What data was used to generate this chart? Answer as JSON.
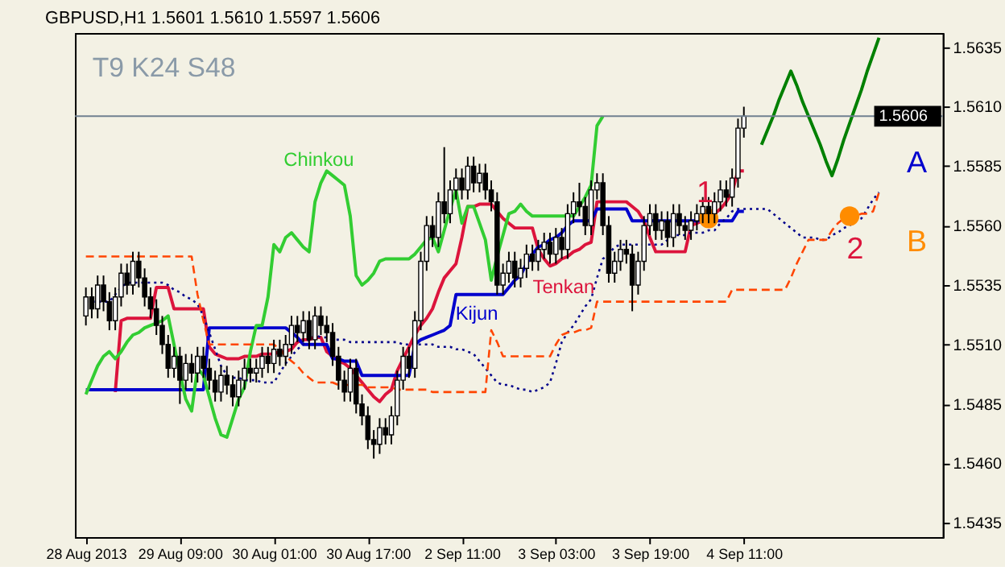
{
  "chart_data": {
    "type": "candlestick",
    "title": "GBPUSD,H1  1.5601 1.5610 1.5597 1.5606",
    "categories": [
      "28 Aug 2013",
      null,
      null,
      null,
      null,
      null,
      null,
      null,
      null,
      null,
      null,
      null,
      null,
      null,
      null,
      null,
      "29 Aug 09:00",
      null,
      null,
      null,
      null,
      null,
      null,
      null,
      null,
      null,
      null,
      null,
      null,
      null,
      null,
      null,
      "30 Aug 01:00",
      null,
      null,
      null,
      null,
      null,
      null,
      null,
      null,
      null,
      null,
      null,
      null,
      null,
      null,
      null,
      "30 Aug 17:00",
      null,
      null,
      null,
      null,
      null,
      null,
      null,
      null,
      null,
      null,
      null,
      null,
      null,
      null,
      null,
      "2 Sep 11:00",
      null,
      null,
      null,
      null,
      null,
      null,
      null,
      null,
      null,
      null,
      null,
      null,
      null,
      null,
      null,
      "3 Sep 03:00",
      null,
      null,
      null,
      null,
      null,
      null,
      null,
      null,
      null,
      null,
      null,
      null,
      null,
      null,
      null,
      "3 Sep 19:00",
      null,
      null,
      null,
      null,
      null,
      null,
      null,
      null,
      null,
      null,
      null,
      null,
      null,
      null,
      null,
      "4 Sep 11:00",
      null,
      null,
      null,
      null,
      null,
      null,
      null,
      null,
      null,
      null,
      null,
      null,
      null,
      null,
      null,
      null,
      null,
      null,
      null,
      null,
      null,
      null,
      null,
      null,
      null,
      null,
      null,
      null,
      null,
      null,
      null,
      null
    ],
    "ohlc": [
      [
        1.5522,
        1.5534,
        1.5518,
        1.553
      ],
      [
        1.553,
        1.5534,
        1.5521,
        1.5525
      ],
      [
        1.5525,
        1.5539,
        1.5521,
        1.5535
      ],
      [
        1.5535,
        1.5539,
        1.5524,
        1.5528
      ],
      [
        1.5528,
        1.5532,
        1.5516,
        1.552
      ],
      [
        1.552,
        1.5534,
        1.5516,
        1.553
      ],
      [
        1.553,
        1.5544,
        1.5526,
        1.554
      ],
      [
        1.554,
        1.5544,
        1.5531,
        1.5535
      ],
      [
        1.5535,
        1.5549,
        1.5531,
        1.5545
      ],
      [
        1.5545,
        1.5549,
        1.5534,
        1.5538
      ],
      [
        1.5538,
        1.5542,
        1.5526,
        1.553
      ],
      [
        1.553,
        1.5534,
        1.5521,
        1.5525
      ],
      [
        1.5525,
        1.5529,
        1.5514,
        1.5518
      ],
      [
        1.5518,
        1.5522,
        1.5506,
        1.551
      ],
      [
        1.551,
        1.5514,
        1.5496,
        1.55
      ],
      [
        1.55,
        1.5509,
        1.5496,
        1.5505
      ],
      [
        1.5505,
        1.5509,
        1.5485,
        1.5495
      ],
      [
        1.5495,
        1.5506,
        1.5491,
        1.5502
      ],
      [
        1.5502,
        1.5506,
        1.5494,
        1.5498
      ],
      [
        1.5498,
        1.5509,
        1.5494,
        1.5505
      ],
      [
        1.5505,
        1.5509,
        1.5496,
        1.55
      ],
      [
        1.55,
        1.5504,
        1.5491,
        1.5495
      ],
      [
        1.5495,
        1.5499,
        1.5486,
        1.549
      ],
      [
        1.549,
        1.5501,
        1.5486,
        1.5497
      ],
      [
        1.5497,
        1.5501,
        1.5489,
        1.5493
      ],
      [
        1.5493,
        1.5497,
        1.5484,
        1.5488
      ],
      [
        1.5488,
        1.5499,
        1.5484,
        1.5495
      ],
      [
        1.5495,
        1.5504,
        1.5491,
        1.55
      ],
      [
        1.55,
        1.5504,
        1.5494,
        1.5498
      ],
      [
        1.5498,
        1.5504,
        1.5494,
        1.55
      ],
      [
        1.55,
        1.5509,
        1.5496,
        1.5505
      ],
      [
        1.5505,
        1.5509,
        1.5498,
        1.5502
      ],
      [
        1.5502,
        1.5512,
        1.5498,
        1.5508
      ],
      [
        1.5508,
        1.5512,
        1.5501,
        1.5505
      ],
      [
        1.5505,
        1.5514,
        1.5501,
        1.551
      ],
      [
        1.551,
        1.5522,
        1.5506,
        1.5518
      ],
      [
        1.5518,
        1.5522,
        1.5511,
        1.5515
      ],
      [
        1.5515,
        1.5524,
        1.5511,
        1.552
      ],
      [
        1.552,
        1.5524,
        1.5508,
        1.5512
      ],
      [
        1.5512,
        1.5526,
        1.5508,
        1.5522
      ],
      [
        1.5522,
        1.5526,
        1.5514,
        1.5518
      ],
      [
        1.5518,
        1.5522,
        1.5511,
        1.5515
      ],
      [
        1.5515,
        1.5519,
        1.5501,
        1.5505
      ],
      [
        1.5505,
        1.5509,
        1.5491,
        1.5495
      ],
      [
        1.5495,
        1.5499,
        1.5486,
        1.549
      ],
      [
        1.549,
        1.5504,
        1.5486,
        1.55
      ],
      [
        1.55,
        1.5504,
        1.5481,
        1.5485
      ],
      [
        1.5485,
        1.5489,
        1.5476,
        1.548
      ],
      [
        1.548,
        1.5484,
        1.5466,
        1.547
      ],
      [
        1.547,
        1.5474,
        1.5462,
        1.5468
      ],
      [
        1.5468,
        1.5479,
        1.5464,
        1.5475
      ],
      [
        1.5475,
        1.5479,
        1.5468,
        1.5472
      ],
      [
        1.5472,
        1.5484,
        1.5468,
        1.548
      ],
      [
        1.548,
        1.5499,
        1.5476,
        1.5495
      ],
      [
        1.5495,
        1.5509,
        1.5491,
        1.5505
      ],
      [
        1.5505,
        1.5509,
        1.5496,
        1.55
      ],
      [
        1.55,
        1.5524,
        1.5496,
        1.552
      ],
      [
        1.552,
        1.5549,
        1.5516,
        1.5545
      ],
      [
        1.5545,
        1.5564,
        1.5541,
        1.556
      ],
      [
        1.556,
        1.5564,
        1.5551,
        1.5555
      ],
      [
        1.5555,
        1.5574,
        1.5551,
        1.557
      ],
      [
        1.557,
        1.5593,
        1.5561,
        1.5565
      ],
      [
        1.5565,
        1.5579,
        1.5561,
        1.5575
      ],
      [
        1.5575,
        1.5584,
        1.5571,
        1.558
      ],
      [
        1.558,
        1.5584,
        1.5571,
        1.5575
      ],
      [
        1.5575,
        1.5589,
        1.5571,
        1.5585
      ],
      [
        1.5585,
        1.5589,
        1.5574,
        1.5578
      ],
      [
        1.5578,
        1.5586,
        1.5574,
        1.5582
      ],
      [
        1.5582,
        1.5586,
        1.5571,
        1.5575
      ],
      [
        1.5575,
        1.5579,
        1.5566,
        1.557
      ],
      [
        1.557,
        1.5574,
        1.5531,
        1.5535
      ],
      [
        1.5535,
        1.5544,
        1.5531,
        1.554
      ],
      [
        1.554,
        1.5549,
        1.5536,
        1.5545
      ],
      [
        1.5545,
        1.5549,
        1.5534,
        1.5538
      ],
      [
        1.5538,
        1.5546,
        1.5534,
        1.5542
      ],
      [
        1.5542,
        1.5552,
        1.5538,
        1.5548
      ],
      [
        1.5548,
        1.5552,
        1.5541,
        1.5545
      ],
      [
        1.5545,
        1.5554,
        1.5541,
        1.555
      ],
      [
        1.555,
        1.5557,
        1.5546,
        1.5553
      ],
      [
        1.5553,
        1.5557,
        1.5544,
        1.5548
      ],
      [
        1.5548,
        1.5559,
        1.5544,
        1.5555
      ],
      [
        1.5555,
        1.5559,
        1.5546,
        1.555
      ],
      [
        1.555,
        1.5569,
        1.5546,
        1.5565
      ],
      [
        1.5565,
        1.5574,
        1.5561,
        1.557
      ],
      [
        1.557,
        1.5578,
        1.5564,
        1.5568
      ],
      [
        1.5568,
        1.5572,
        1.5556,
        1.556
      ],
      [
        1.556,
        1.5579,
        1.5556,
        1.5575
      ],
      [
        1.5575,
        1.5582,
        1.5571,
        1.5578
      ],
      [
        1.5578,
        1.5582,
        1.5556,
        1.556
      ],
      [
        1.556,
        1.5564,
        1.5536,
        1.554
      ],
      [
        1.554,
        1.5549,
        1.5536,
        1.5545
      ],
      [
        1.5545,
        1.5554,
        1.5541,
        1.555
      ],
      [
        1.555,
        1.5554,
        1.5544,
        1.5548
      ],
      [
        1.5548,
        1.5552,
        1.5524,
        1.5535
      ],
      [
        1.5535,
        1.5549,
        1.5531,
        1.5545
      ],
      [
        1.5545,
        1.5564,
        1.5541,
        1.556
      ],
      [
        1.556,
        1.5569,
        1.5556,
        1.5565
      ],
      [
        1.5565,
        1.5569,
        1.5554,
        1.5558
      ],
      [
        1.5558,
        1.5566,
        1.5554,
        1.5562
      ],
      [
        1.5562,
        1.5566,
        1.5551,
        1.5555
      ],
      [
        1.5555,
        1.5569,
        1.5551,
        1.5565
      ],
      [
        1.5565,
        1.5569,
        1.5556,
        1.556
      ],
      [
        1.556,
        1.5564,
        1.5554,
        1.5558
      ],
      [
        1.5558,
        1.5566,
        1.5554,
        1.5562
      ],
      [
        1.5562,
        1.5569,
        1.5558,
        1.5565
      ],
      [
        1.5565,
        1.5572,
        1.5561,
        1.5568
      ],
      [
        1.5568,
        1.5572,
        1.5561,
        1.5565
      ],
      [
        1.5565,
        1.5574,
        1.5561,
        1.557
      ],
      [
        1.557,
        1.5579,
        1.5566,
        1.5575
      ],
      [
        1.5575,
        1.5579,
        1.5568,
        1.5572
      ],
      [
        1.5572,
        1.5584,
        1.5568,
        1.558
      ],
      [
        1.558,
        1.5605,
        1.5576,
        1.5601
      ],
      [
        1.5601,
        1.561,
        1.5597,
        1.5606
      ],
      null,
      null,
      null,
      null,
      null,
      null,
      null,
      null,
      null,
      null,
      null,
      null,
      null,
      null,
      null,
      null,
      null,
      null,
      null,
      null,
      null,
      null,
      null,
      null,
      null,
      null,
      null,
      null,
      null,
      null,
      null,
      null
    ],
    "series": [
      {
        "type": "line",
        "color": "#dc143c",
        "values": [
          null,
          null,
          null,
          null,
          null,
          1.549,
          1.552,
          1.5521,
          1.5521,
          1.5521,
          1.5521,
          1.5521,
          1.5534,
          1.5534,
          1.5534,
          1.5525,
          1.5525,
          1.5525,
          1.5525,
          1.5525,
          1.5525,
          1.5509,
          1.5506,
          1.5505,
          1.5504,
          1.5504,
          1.5504,
          1.5505,
          1.5505,
          1.5505,
          1.5506,
          1.5506,
          1.5506,
          1.5507,
          1.5507,
          1.5508,
          1.5511,
          1.5512,
          1.5512,
          1.5513,
          1.5513,
          1.5507,
          1.5505,
          1.5503,
          1.5502,
          1.55,
          1.5497,
          1.5494,
          1.5491,
          1.5488,
          1.5486,
          1.5489,
          1.5491,
          1.5499,
          1.5504,
          1.5509,
          1.5514,
          1.5518,
          1.5521,
          1.5525,
          1.5532,
          1.5538,
          1.5541,
          1.5544,
          1.5555,
          1.5568,
          1.5568,
          1.5569,
          1.5569,
          1.5569,
          1.5566,
          1.5563,
          1.5561,
          1.5559,
          1.5559,
          1.5559,
          1.5559,
          1.555,
          1.5546,
          1.5543,
          1.5544,
          1.5546,
          1.5547,
          1.5549,
          1.555,
          1.5552,
          1.5553,
          1.557,
          1.557,
          1.557,
          1.557,
          1.557,
          1.557,
          1.5568,
          1.5566,
          1.5562,
          1.5555,
          1.5549,
          1.5549,
          1.5549,
          1.5549,
          1.5549,
          1.5549,
          1.556,
          1.5561,
          1.5562,
          1.5563,
          1.5565,
          1.5567,
          1.557,
          1.5574,
          1.5583,
          1.5583,
          null,
          null,
          null,
          null,
          null,
          null,
          null,
          null,
          null,
          null,
          null,
          null,
          null,
          null,
          null,
          null,
          null,
          null,
          null,
          null,
          null,
          null,
          null,
          null,
          null,
          null,
          null,
          null,
          null,
          null,
          null,
          null
        ]
      },
      {
        "type": "line",
        "color": "#0000cd",
        "values": [
          1.5491,
          1.5491,
          1.5491,
          1.5491,
          1.5491,
          1.5491,
          1.5491,
          1.5491,
          1.5491,
          1.5491,
          1.5491,
          1.5491,
          1.5491,
          1.5491,
          1.5491,
          1.5491,
          1.5491,
          1.5491,
          1.5491,
          1.5491,
          1.5491,
          1.5517,
          1.5517,
          1.5517,
          1.5517,
          1.5517,
          1.5517,
          1.5517,
          1.5517,
          1.5517,
          1.5517,
          1.5517,
          1.5517,
          1.5517,
          1.5517,
          1.5515,
          1.5513,
          1.551,
          1.551,
          1.551,
          1.551,
          1.551,
          1.5504,
          1.5504,
          1.5503,
          1.5503,
          1.5503,
          1.5497,
          1.5497,
          1.5497,
          1.5497,
          1.5497,
          1.5497,
          1.5497,
          1.5497,
          1.5497,
          1.551,
          1.5512,
          1.5513,
          1.5514,
          1.5515,
          1.5516,
          1.5518,
          1.5531,
          1.5531,
          1.5531,
          1.5531,
          1.5531,
          1.5531,
          1.5531,
          1.5531,
          1.5531,
          1.5534,
          1.5537,
          1.5539,
          1.5544,
          1.5548,
          1.5551,
          1.5552,
          1.5554,
          1.5555,
          1.5557,
          1.556,
          1.5562,
          1.5562,
          1.5562,
          1.5562,
          1.5567,
          1.5567,
          1.5567,
          1.5567,
          1.5567,
          1.5567,
          1.5562,
          1.5562,
          1.5562,
          1.5562,
          1.5562,
          1.5562,
          1.5562,
          1.5562,
          1.5562,
          1.5562,
          1.5562,
          1.5562,
          1.5562,
          1.5562,
          1.5562,
          1.5562,
          1.5562,
          1.5562,
          1.5566,
          1.5566,
          null,
          null,
          null,
          null,
          null,
          null,
          null,
          null,
          null,
          null,
          null,
          null,
          null,
          null,
          null,
          null,
          null,
          null,
          null,
          null,
          null,
          null,
          null,
          null,
          null,
          null,
          null,
          null,
          null,
          null,
          null,
          null
        ]
      },
      {
        "type": "line",
        "color": "#32cd32",
        "values": [
          1.5489,
          1.5495,
          1.5501,
          1.5505,
          1.5507,
          1.5504,
          1.5507,
          1.5511,
          1.5514,
          1.5515,
          1.5517,
          1.5518,
          1.5519,
          1.552,
          1.5522,
          1.551,
          1.5498,
          1.5487,
          1.5482,
          1.55,
          1.5497,
          1.5488,
          1.5479,
          1.5472,
          1.5471,
          1.5479,
          1.5487,
          1.5492,
          1.5507,
          1.5518,
          1.5518,
          1.553,
          1.5552,
          1.5549,
          1.5555,
          1.5557,
          1.5554,
          1.5551,
          1.5549,
          1.557,
          1.5578,
          1.5583,
          1.5581,
          1.5579,
          1.5577,
          1.5564,
          1.5539,
          1.5535,
          1.5537,
          1.554,
          1.5545,
          1.5546,
          1.5546,
          1.5546,
          1.5546,
          1.5546,
          1.5548,
          1.5551,
          1.5554,
          1.5555,
          1.5549,
          1.5558,
          1.5567,
          1.5575,
          1.5561,
          1.5568,
          1.5568,
          1.5561,
          1.5554,
          1.5537,
          1.5547,
          1.5556,
          1.5565,
          1.5566,
          1.5569,
          1.5566,
          1.5564,
          1.5564,
          1.5564,
          1.5564,
          1.5564,
          1.5564,
          1.5564,
          1.5564,
          1.5568,
          1.5572,
          1.5577,
          1.5602,
          1.5606,
          null,
          null,
          null,
          null,
          null,
          null,
          null,
          null,
          null,
          null,
          null,
          null,
          null,
          null,
          null,
          null,
          null,
          null,
          null,
          null,
          null,
          null,
          null,
          null,
          null,
          null,
          null,
          null,
          null,
          null,
          null,
          null,
          null,
          null,
          null,
          null,
          null,
          null,
          null,
          null,
          null,
          null,
          null,
          null,
          null,
          null,
          null,
          null,
          null,
          null,
          null,
          null,
          null,
          null,
          null,
          null
        ]
      },
      {
        "type": "line",
        "color": "#00008b",
        "line_style": "dotted",
        "values": [
          1.5528,
          1.5528,
          1.5528,
          1.5528,
          1.5528,
          1.5531,
          1.5534,
          1.5536,
          1.5536,
          1.5536,
          1.5536,
          1.5536,
          1.5536,
          1.5536,
          1.5535,
          1.5533,
          1.5532,
          1.553,
          1.5529,
          1.5527,
          1.5522,
          1.5515,
          1.5508,
          1.5501,
          1.5497,
          1.5496,
          1.5496,
          1.5495,
          1.5495,
          1.5495,
          1.5494,
          1.5494,
          1.5494,
          1.5498,
          1.5502,
          1.5505,
          1.5508,
          1.551,
          1.5512,
          1.5514,
          1.5513,
          1.5513,
          1.5512,
          1.5512,
          1.5512,
          1.5511,
          1.5511,
          1.5511,
          1.5511,
          1.5511,
          1.5511,
          1.5511,
          1.5511,
          1.5511,
          1.551,
          1.551,
          1.551,
          1.551,
          1.551,
          1.551,
          1.5509,
          1.5509,
          1.5509,
          1.5508,
          1.5508,
          1.5507,
          1.5506,
          1.5503,
          1.55,
          1.5497,
          1.5494,
          1.5493,
          1.5493,
          1.5492,
          1.5491,
          1.5491,
          1.549,
          1.5491,
          1.5492,
          1.5494,
          1.5502,
          1.5511,
          1.5515,
          1.5518,
          1.5522,
          1.5526,
          1.5529,
          1.5538,
          1.5546,
          1.5548,
          1.5551,
          1.5552,
          1.5552,
          1.5552,
          1.5552,
          1.5552,
          1.5552,
          1.5552,
          1.5552,
          1.5554,
          1.5556,
          1.5556,
          1.5556,
          1.5557,
          1.5557,
          1.5557,
          1.5558,
          1.5558,
          1.5561,
          1.5563,
          1.5566,
          1.5567,
          1.5567,
          1.5567,
          1.5567,
          1.5567,
          1.5567,
          1.5565,
          1.5563,
          1.5561,
          1.5559,
          1.5557,
          1.5555,
          1.5555,
          1.5555,
          1.5554,
          1.5554,
          1.5556,
          1.5557,
          1.5559,
          1.556,
          1.5562,
          1.5563,
          1.5567,
          1.5571,
          1.5574,
          null,
          null,
          null,
          null,
          null,
          null,
          null,
          null,
          null
        ]
      },
      {
        "type": "line",
        "color": "#ff4500",
        "line_style": "dashed",
        "values": [
          1.5547,
          1.5547,
          1.5547,
          1.5547,
          1.5547,
          1.5547,
          1.5547,
          1.5547,
          1.5547,
          1.5547,
          1.5547,
          1.5547,
          1.5547,
          1.5547,
          1.5547,
          1.5547,
          1.5547,
          1.5547,
          1.5547,
          1.5531,
          1.552,
          1.551,
          1.551,
          1.551,
          1.551,
          1.551,
          1.551,
          1.551,
          1.551,
          1.551,
          1.551,
          1.551,
          1.551,
          1.5508,
          1.5505,
          1.5503,
          1.5501,
          1.5498,
          1.5496,
          1.5494,
          1.5494,
          1.5494,
          1.5494,
          1.5493,
          1.5493,
          1.5493,
          1.5493,
          1.5493,
          1.5492,
          1.5492,
          1.5492,
          1.5492,
          1.5492,
          1.5491,
          1.5491,
          1.5491,
          1.5491,
          1.5491,
          1.5491,
          1.549,
          1.549,
          1.549,
          1.549,
          1.549,
          1.549,
          1.549,
          1.549,
          1.549,
          1.549,
          1.5516,
          1.5511,
          1.5505,
          1.5505,
          1.5505,
          1.5505,
          1.5505,
          1.5505,
          1.5505,
          1.5505,
          1.5505,
          1.551,
          1.5514,
          1.5515,
          1.5515,
          1.5516,
          1.5516,
          1.5517,
          1.5528,
          1.5528,
          1.5528,
          1.5528,
          1.5528,
          1.5528,
          1.5528,
          1.5528,
          1.5528,
          1.5528,
          1.5528,
          1.5528,
          1.5528,
          1.5528,
          1.5528,
          1.5528,
          1.5528,
          1.5528,
          1.5528,
          1.5528,
          1.5528,
          1.5528,
          1.5528,
          1.5533,
          1.5533,
          1.5533,
          1.5533,
          1.5533,
          1.5533,
          1.5533,
          1.5533,
          1.5533,
          1.5533,
          1.5538,
          1.5544,
          1.5549,
          1.5554,
          1.5554,
          1.5554,
          1.5554,
          1.5558,
          1.5561,
          1.5563,
          1.5564,
          1.5564,
          1.5565,
          1.5565,
          1.5566,
          1.5574,
          null,
          null,
          null,
          null,
          null,
          null,
          null,
          null,
          null
        ]
      },
      {
        "type": "line",
        "color": "#008000",
        "values": [
          null,
          null,
          null,
          null,
          null,
          null,
          null,
          null,
          null,
          null,
          null,
          null,
          null,
          null,
          null,
          null,
          null,
          null,
          null,
          null,
          null,
          null,
          null,
          null,
          null,
          null,
          null,
          null,
          null,
          null,
          null,
          null,
          null,
          null,
          null,
          null,
          null,
          null,
          null,
          null,
          null,
          null,
          null,
          null,
          null,
          null,
          null,
          null,
          null,
          null,
          null,
          null,
          null,
          null,
          null,
          null,
          null,
          null,
          null,
          null,
          null,
          null,
          null,
          null,
          null,
          null,
          null,
          null,
          null,
          null,
          null,
          null,
          null,
          null,
          null,
          null,
          null,
          null,
          null,
          null,
          null,
          null,
          null,
          null,
          null,
          null,
          null,
          null,
          null,
          null,
          null,
          null,
          null,
          null,
          null,
          null,
          null,
          null,
          null,
          null,
          null,
          null,
          null,
          null,
          null,
          null,
          null,
          null,
          null,
          null,
          null,
          null,
          null,
          null,
          null,
          1.5594,
          1.56,
          1.5606,
          1.5613,
          1.5619,
          1.5625,
          1.5619,
          1.5612,
          1.5606,
          1.56,
          1.5594,
          1.5587,
          1.5581,
          1.5588,
          1.5596,
          1.5603,
          1.561,
          1.5617,
          1.5625,
          1.5632,
          1.5639,
          null,
          null,
          null,
          null,
          null,
          null,
          null,
          null,
          null
        ]
      },
      {
        "type": "scatter",
        "color": "#ff8c00",
        "marker": "circle",
        "values": [
          null,
          null,
          null,
          null,
          null,
          null,
          null,
          null,
          null,
          null,
          null,
          null,
          null,
          null,
          null,
          null,
          null,
          null,
          null,
          null,
          null,
          null,
          null,
          null,
          null,
          null,
          null,
          null,
          null,
          null,
          null,
          null,
          null,
          null,
          null,
          null,
          null,
          null,
          null,
          null,
          null,
          null,
          null,
          null,
          null,
          null,
          null,
          null,
          null,
          null,
          null,
          null,
          null,
          null,
          null,
          null,
          null,
          null,
          null,
          null,
          null,
          null,
          null,
          null,
          null,
          null,
          null,
          null,
          null,
          null,
          null,
          null,
          null,
          null,
          null,
          null,
          null,
          null,
          null,
          null,
          null,
          null,
          null,
          null,
          null,
          null,
          null,
          null,
          null,
          null,
          null,
          null,
          null,
          null,
          null,
          null,
          null,
          null,
          null,
          null,
          null,
          null,
          null,
          null,
          null,
          null,
          1.5563,
          null,
          null,
          null,
          null,
          null,
          null,
          null,
          null,
          null,
          null,
          null,
          null,
          null,
          null,
          null,
          null,
          null,
          null,
          null,
          null,
          null,
          null,
          null,
          1.5564,
          null,
          null,
          null,
          null,
          null,
          null,
          null,
          null,
          null,
          null,
          null,
          null,
          null,
          null
        ]
      }
    ],
    "annotations": [
      "Chinkou",
      "Tenkan",
      "Kijun",
      "1",
      "2",
      "A",
      "B",
      "T9 K24 S48"
    ],
    "ref_lines": [
      {
        "axis": "y",
        "value": 1.5606,
        "label": "1.5606",
        "color": "#708090"
      }
    ],
    "ylim": [
      1.5429,
      1.5641
    ],
    "yticks": [
      1.5435,
      {
        "value": 1.546,
        "label": "1.5460"
      },
      1.5485,
      {
        "value": 1.551,
        "label": "1.5510"
      },
      1.5535,
      {
        "value": 1.556,
        "label": "1.5560"
      },
      1.5585,
      {
        "value": 1.561,
        "label": "1.5610"
      },
      1.5635
    ],
    "grid": false
  }
}
